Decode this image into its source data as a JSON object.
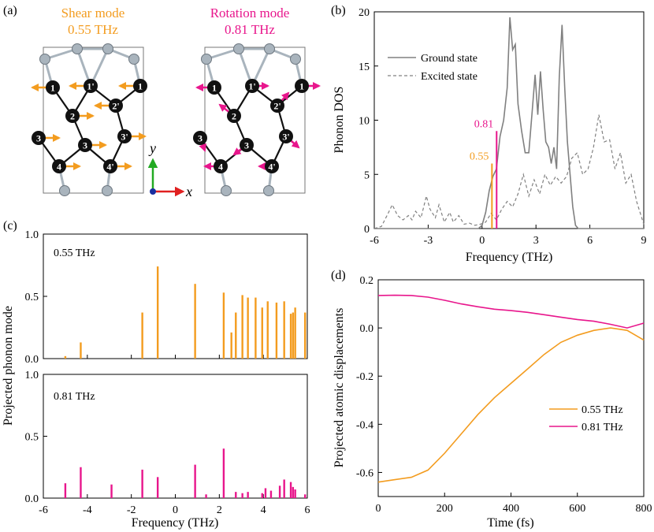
{
  "figure": {
    "panel_labels": [
      "(a)",
      "(b)",
      "(c)",
      "(d)"
    ],
    "colors": {
      "orange": "#F39C1F",
      "magenta": "#E8168C",
      "axis": "#000000",
      "ground": "#808080",
      "excited": "#808080",
      "atom": "#111111",
      "surface_atom": "#A9B4BD"
    }
  },
  "panel_a": {
    "shear_title": "Shear mode",
    "shear_freq": "0.55 THz",
    "rotation_title": "Rotation mode",
    "rotation_freq": "0.81 THz",
    "atom_labels": [
      "1",
      "1'",
      "1",
      "2",
      "2'",
      "3",
      "3",
      "3'",
      "4",
      "4'"
    ],
    "axis_y": "y",
    "axis_x": "x",
    "icons": [
      "shear-arrows",
      "rotation-arrows",
      "coordinate-axes-icon"
    ]
  },
  "panel_b": {
    "chart_data": {
      "type": "line",
      "xlabel": "Frequency (THz)",
      "ylabel": "Phonon DOS",
      "xlim": [
        -6,
        9
      ],
      "ylim": [
        0,
        20
      ],
      "xticks": [
        -6,
        -3,
        0,
        3,
        6,
        9
      ],
      "yticks": [
        0,
        5,
        10,
        15,
        20
      ],
      "legend_position": "top-left",
      "series": [
        {
          "name": "Ground state",
          "style": "solid",
          "color": "#808080",
          "x": [
            -6,
            -0.2,
            0.0,
            0.2,
            0.4,
            0.6,
            0.8,
            1.0,
            1.2,
            1.4,
            1.55,
            1.7,
            1.85,
            2.0,
            2.2,
            2.4,
            2.6,
            2.8,
            2.95,
            3.1,
            3.25,
            3.4,
            3.55,
            3.7,
            3.85,
            4.0,
            4.15,
            4.3,
            4.45,
            4.6,
            4.75,
            4.9,
            5.05,
            5.2,
            5.35,
            9
          ],
          "y": [
            0,
            0,
            0.3,
            1.5,
            3.5,
            4.8,
            5.5,
            8.5,
            10,
            13,
            19.5,
            16.5,
            17,
            11.5,
            9,
            7,
            7,
            11,
            14.2,
            10.5,
            14.5,
            11,
            8,
            7.5,
            6,
            7.5,
            5.5,
            14,
            18.8,
            13,
            8,
            5,
            2,
            0.3,
            0,
            0
          ]
        },
        {
          "name": "Excited state",
          "style": "dashed",
          "color": "#808080",
          "x": [
            -6,
            -5.6,
            -5.2,
            -5.0,
            -4.7,
            -4.4,
            -4.1,
            -3.9,
            -3.7,
            -3.4,
            -3.1,
            -2.9,
            -2.6,
            -2.4,
            -2.1,
            -1.8,
            -1.6,
            -1.3,
            -1.0,
            -0.7,
            -0.4,
            -0.1,
            0.2,
            0.5,
            0.8,
            1.1,
            1.4,
            1.7,
            2.0,
            2.3,
            2.6,
            2.9,
            3.2,
            3.5,
            3.8,
            4.1,
            4.4,
            4.7,
            5.0,
            5.3,
            5.6,
            5.9,
            6.2,
            6.5,
            6.8,
            7.1,
            7.4,
            7.7,
            8.0,
            8.3,
            8.6,
            9
          ],
          "y": [
            0,
            0.2,
            1.5,
            2.2,
            1.2,
            0.8,
            1.2,
            0.8,
            1.6,
            1.0,
            3.0,
            1.8,
            1.0,
            2.2,
            0.6,
            1.5,
            0.6,
            1.2,
            0.4,
            0.5,
            0.3,
            0.4,
            0.6,
            1.4,
            0.8,
            1.8,
            2.5,
            2.0,
            3.2,
            5.0,
            3.0,
            4.5,
            3.2,
            5.0,
            4.0,
            4.8,
            4.2,
            4.8,
            6.5,
            7.0,
            5.0,
            5.5,
            7.5,
            10.5,
            8.0,
            8.2,
            5.5,
            7.0,
            4.2,
            5.0,
            2.5,
            0.4
          ]
        }
      ],
      "markers": [
        {
          "label": "0.55",
          "x": 0.55,
          "height": 6.0,
          "color": "#F39C1F"
        },
        {
          "label": "0.81",
          "x": 0.81,
          "height": 9.0,
          "color": "#E8168C"
        }
      ]
    }
  },
  "panel_c": {
    "ylabel": "Projected phonon mode",
    "xlabel": "Frequency (THz)",
    "chart_data": [
      {
        "type": "bar",
        "label": "0.55 THz",
        "color": "#F39C1F",
        "xlim": [
          -6,
          6
        ],
        "ylim": [
          0,
          1.0
        ],
        "yticks": [
          0.0,
          0.5,
          1.0
        ],
        "x": [
          -5.0,
          -4.3,
          -1.5,
          -0.8,
          0.9,
          2.2,
          2.55,
          2.75,
          3.05,
          3.3,
          3.65,
          3.95,
          4.2,
          4.6,
          4.95,
          5.25,
          5.35,
          5.45,
          5.9
        ],
        "values": [
          0.02,
          0.13,
          0.37,
          0.74,
          0.6,
          0.53,
          0.21,
          0.37,
          0.51,
          0.49,
          0.49,
          0.41,
          0.46,
          0.45,
          0.46,
          0.36,
          0.37,
          0.41,
          0.37
        ]
      },
      {
        "type": "bar",
        "label": "0.81 THz",
        "color": "#E8168C",
        "xlim": [
          -6,
          6
        ],
        "ylim": [
          0,
          1.0
        ],
        "yticks": [
          0.0,
          0.5,
          1.0
        ],
        "xticks": [
          -6,
          -4,
          -2,
          0,
          2,
          4,
          6
        ],
        "x": [
          -5.0,
          -4.3,
          -2.9,
          -1.5,
          -0.8,
          0.9,
          1.4,
          2.2,
          2.75,
          3.05,
          3.3,
          3.95,
          4.1,
          4.35,
          4.75,
          4.95,
          5.25,
          5.35,
          5.45,
          5.9
        ],
        "values": [
          0.12,
          0.25,
          0.11,
          0.23,
          0.17,
          0.27,
          0.03,
          0.4,
          0.05,
          0.04,
          0.05,
          0.04,
          0.08,
          0.06,
          0.1,
          0.15,
          0.13,
          0.09,
          0.07,
          0.03
        ]
      }
    ]
  },
  "panel_d": {
    "chart_data": {
      "type": "line",
      "xlabel": "Time (fs)",
      "ylabel": "Projected atomic displacements",
      "xlim": [
        0,
        800
      ],
      "ylim": [
        -0.7,
        0.2
      ],
      "xticks": [
        0,
        200,
        400,
        600,
        800
      ],
      "yticks": [
        -0.6,
        -0.4,
        -0.2,
        0.0,
        0.2
      ],
      "legend_position": "bottom-right",
      "series": [
        {
          "name": "0.55 THz",
          "color": "#F39C1F",
          "x": [
            0,
            50,
            100,
            150,
            200,
            250,
            300,
            350,
            400,
            450,
            500,
            550,
            600,
            650,
            700,
            750,
            800
          ],
          "y": [
            -0.64,
            -0.63,
            -0.62,
            -0.59,
            -0.52,
            -0.44,
            -0.36,
            -0.29,
            -0.23,
            -0.17,
            -0.11,
            -0.06,
            -0.03,
            -0.01,
            0.0,
            -0.01,
            -0.05
          ]
        },
        {
          "name": "0.81 THz",
          "color": "#E8168C",
          "x": [
            0,
            50,
            100,
            150,
            200,
            250,
            300,
            350,
            400,
            450,
            500,
            550,
            600,
            650,
            700,
            750,
            800
          ],
          "y": [
            0.135,
            0.136,
            0.135,
            0.128,
            0.115,
            0.1,
            0.088,
            0.078,
            0.072,
            0.065,
            0.055,
            0.045,
            0.035,
            0.028,
            0.015,
            0.0,
            0.02
          ]
        }
      ]
    }
  }
}
